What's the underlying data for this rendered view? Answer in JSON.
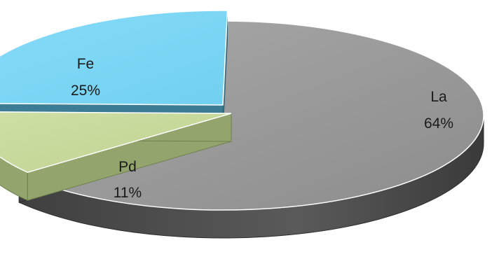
{
  "chart_data": {
    "type": "pie",
    "style": "3d-exploded",
    "title": "",
    "slices": [
      {
        "label": "La",
        "value": 64,
        "display": "64%",
        "color": "#9a9a9a",
        "side_color": "#4a4a4a"
      },
      {
        "label": "Pd",
        "value": 11,
        "display": "11%",
        "color": "#c5d79a",
        "side_color": "#8ea06a"
      },
      {
        "label": "Fe",
        "value": 25,
        "display": "25%",
        "color": "#7fd8f6",
        "side_color": "#3a7a92"
      }
    ]
  }
}
